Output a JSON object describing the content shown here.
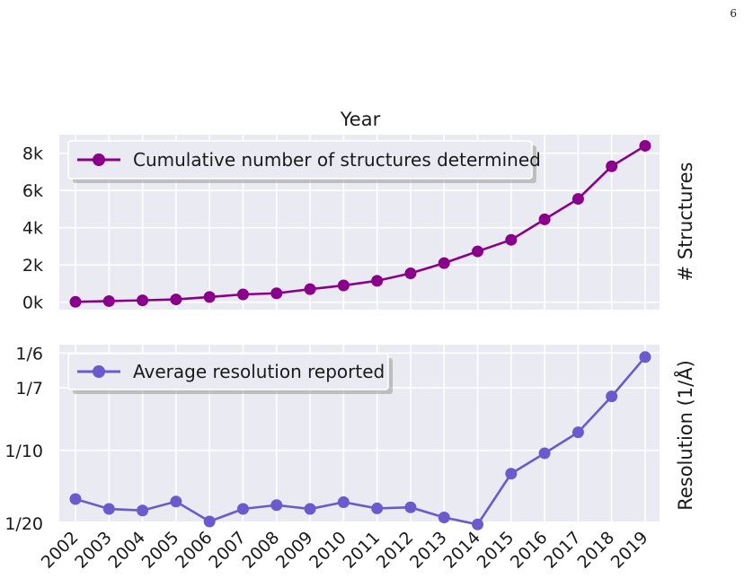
{
  "page": {
    "number": "6"
  },
  "colors": {
    "panel_bg": "#EAEAF2",
    "grid": "#ffffff",
    "series_top": "#8B008B",
    "series_bottom": "#6A5ACD"
  },
  "chart_data": [
    {
      "type": "line",
      "title": "Year",
      "xlabel": "",
      "ylabel": "# Structures",
      "x": [
        2002,
        2003,
        2004,
        2005,
        2006,
        2007,
        2008,
        2009,
        2010,
        2011,
        2012,
        2013,
        2014,
        2015,
        2016,
        2017,
        2018,
        2019
      ],
      "ylim": [
        -400,
        9000
      ],
      "yticks": [
        0,
        2000,
        4000,
        6000,
        8000
      ],
      "yticklabels": [
        "0k",
        "2k",
        "4k",
        "6k",
        "8k"
      ],
      "grid": true,
      "legend": "top-left",
      "series": [
        {
          "name": "Cumulative number of structures determined",
          "values": [
            20,
            60,
            100,
            150,
            280,
            420,
            480,
            700,
            900,
            1150,
            1550,
            2100,
            2730,
            3350,
            4450,
            5550,
            7300,
            8400
          ]
        }
      ]
    },
    {
      "type": "line",
      "title": "",
      "xlabel": "",
      "ylabel": "Resolution (1/Å)",
      "x": [
        2002,
        2003,
        2004,
        2005,
        2006,
        2007,
        2008,
        2009,
        2010,
        2011,
        2012,
        2013,
        2014,
        2015,
        2016,
        2017,
        2018,
        2019
      ],
      "xticklabels": [
        "2002",
        "2003",
        "2004",
        "2005",
        "2006",
        "2007",
        "2008",
        "2009",
        "2010",
        "2011",
        "2012",
        "2013",
        "2014",
        "2015",
        "2016",
        "2017",
        "2018",
        "2019"
      ],
      "scale": "reciprocal",
      "ylim": [
        19.5,
        5.8
      ],
      "yticks": [
        6,
        7,
        10,
        20
      ],
      "yticklabels": [
        "1/6",
        "1/7",
        "1/10",
        "1/20"
      ],
      "grid": true,
      "legend": "top-left",
      "series": [
        {
          "name": "Average resolution reported",
          "values": [
            15.0,
            16.7,
            17.0,
            15.4,
            19.5,
            16.7,
            16.0,
            16.7,
            15.5,
            16.6,
            16.4,
            18.5,
            20.3,
            11.9,
            10.2,
            8.9,
            7.3,
            6.1
          ]
        }
      ]
    }
  ]
}
